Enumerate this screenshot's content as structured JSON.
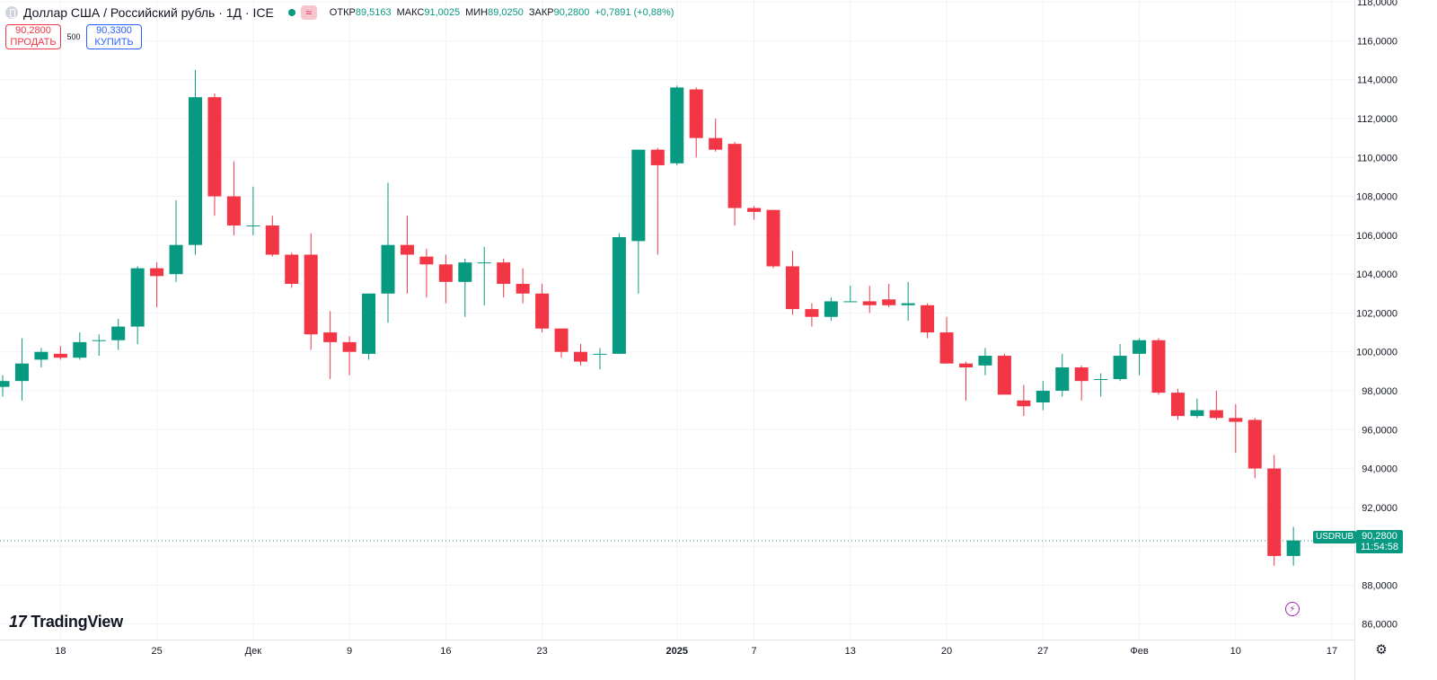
{
  "header": {
    "title": "Доллар США / Российский рубль · 1Д · ICE",
    "status_icon": "≈",
    "ohlc": [
      {
        "label": "ОТКР",
        "value": "89,5163"
      },
      {
        "label": "МАКС",
        "value": "91,0025"
      },
      {
        "label": "МИН",
        "value": "89,0250"
      },
      {
        "label": "ЗАКР",
        "value": "90,2800"
      },
      {
        "label": "",
        "value": "+0,7891 (+0,88%)"
      }
    ]
  },
  "trade": {
    "sell_price": "90,2800",
    "sell_label": "ПРОДАТЬ",
    "spread": "500",
    "buy_price": "90,3300",
    "buy_label": "КУПИТЬ"
  },
  "logo": {
    "text": "TradingView"
  },
  "price_tag": {
    "symbol": "USDRUB",
    "price": "90,2800",
    "countdown": "11:54:58"
  },
  "colors": {
    "up": "#089981",
    "down": "#f23645",
    "grid": "#f0f3fa"
  },
  "chart_data": {
    "type": "candlestick",
    "last_price": 90.28,
    "ylim": [
      85.2,
      118.1
    ],
    "y_ticks": [
      {
        "v": 86,
        "label": "86,0000"
      },
      {
        "v": 88,
        "label": "88,0000"
      },
      {
        "v": 90,
        "label": "90,0000"
      },
      {
        "v": 92,
        "label": "92,0000"
      },
      {
        "v": 94,
        "label": "94,0000"
      },
      {
        "v": 96,
        "label": "96,0000"
      },
      {
        "v": 98,
        "label": "98,0000"
      },
      {
        "v": 100,
        "label": "100,0000"
      },
      {
        "v": 102,
        "label": "102,0000"
      },
      {
        "v": 104,
        "label": "104,0000"
      },
      {
        "v": 106,
        "label": "106,0000"
      },
      {
        "v": 108,
        "label": "108,0000"
      },
      {
        "v": 110,
        "label": "110,0000"
      },
      {
        "v": 112,
        "label": "112,0000"
      },
      {
        "v": 114,
        "label": "114,0000"
      },
      {
        "v": 116,
        "label": "116,0000"
      },
      {
        "v": 118,
        "label": "118,0000"
      }
    ],
    "x_ticks": [
      {
        "i": 3,
        "label": "18",
        "bold": false
      },
      {
        "i": 8,
        "label": "25",
        "bold": false
      },
      {
        "i": 13,
        "label": "Дек",
        "bold": false
      },
      {
        "i": 18,
        "label": "9",
        "bold": false
      },
      {
        "i": 23,
        "label": "16",
        "bold": false
      },
      {
        "i": 28,
        "label": "23",
        "bold": false
      },
      {
        "i": 35,
        "label": "2025",
        "bold": true
      },
      {
        "i": 39,
        "label": "7",
        "bold": false
      },
      {
        "i": 44,
        "label": "13",
        "bold": false
      },
      {
        "i": 49,
        "label": "20",
        "bold": false
      },
      {
        "i": 54,
        "label": "27",
        "bold": false
      },
      {
        "i": 59,
        "label": "Фев",
        "bold": false
      },
      {
        "i": 64,
        "label": "10",
        "bold": false
      },
      {
        "i": 69,
        "label": "17",
        "bold": false
      }
    ],
    "candles": [
      {
        "o": 98.2,
        "h": 98.8,
        "l": 97.7,
        "c": 98.5
      },
      {
        "o": 98.5,
        "h": 100.7,
        "l": 97.5,
        "c": 99.4
      },
      {
        "o": 99.6,
        "h": 100.2,
        "l": 99.2,
        "c": 100.0
      },
      {
        "o": 99.9,
        "h": 100.3,
        "l": 99.6,
        "c": 99.7
      },
      {
        "o": 99.7,
        "h": 101.0,
        "l": 99.6,
        "c": 100.5
      },
      {
        "o": 100.6,
        "h": 100.9,
        "l": 99.8,
        "c": 100.6
      },
      {
        "o": 100.6,
        "h": 101.7,
        "l": 100.1,
        "c": 101.3
      },
      {
        "o": 101.3,
        "h": 104.4,
        "l": 100.4,
        "c": 104.3
      },
      {
        "o": 104.3,
        "h": 104.6,
        "l": 102.3,
        "c": 103.9
      },
      {
        "o": 104.0,
        "h": 107.8,
        "l": 103.6,
        "c": 105.5
      },
      {
        "o": 105.5,
        "h": 114.5,
        "l": 105.0,
        "c": 113.1
      },
      {
        "o": 113.1,
        "h": 113.3,
        "l": 107.0,
        "c": 108.0
      },
      {
        "o": 108.0,
        "h": 109.8,
        "l": 106.0,
        "c": 106.5
      },
      {
        "o": 106.5,
        "h": 108.5,
        "l": 106.0,
        "c": 106.5
      },
      {
        "o": 106.5,
        "h": 107.0,
        "l": 104.9,
        "c": 105.0
      },
      {
        "o": 105.0,
        "h": 105.1,
        "l": 103.3,
        "c": 103.5
      },
      {
        "o": 105.0,
        "h": 106.1,
        "l": 100.1,
        "c": 100.9
      },
      {
        "o": 101.0,
        "h": 102.1,
        "l": 98.6,
        "c": 100.5
      },
      {
        "o": 100.5,
        "h": 100.8,
        "l": 98.8,
        "c": 100.0
      },
      {
        "o": 99.9,
        "h": 103.0,
        "l": 99.6,
        "c": 103.0
      },
      {
        "o": 103.0,
        "h": 108.7,
        "l": 101.5,
        "c": 105.5
      },
      {
        "o": 105.5,
        "h": 107.0,
        "l": 103.0,
        "c": 105.0
      },
      {
        "o": 104.9,
        "h": 105.3,
        "l": 102.8,
        "c": 104.5
      },
      {
        "o": 104.5,
        "h": 105.0,
        "l": 102.5,
        "c": 103.6
      },
      {
        "o": 103.6,
        "h": 104.8,
        "l": 101.8,
        "c": 104.6
      },
      {
        "o": 104.6,
        "h": 105.4,
        "l": 102.4,
        "c": 104.6
      },
      {
        "o": 104.6,
        "h": 104.8,
        "l": 102.8,
        "c": 103.5
      },
      {
        "o": 103.5,
        "h": 104.3,
        "l": 102.5,
        "c": 103.0
      },
      {
        "o": 103.0,
        "h": 103.5,
        "l": 101.0,
        "c": 101.2
      },
      {
        "o": 101.2,
        "h": 101.2,
        "l": 99.7,
        "c": 100.0
      },
      {
        "o": 100.0,
        "h": 100.4,
        "l": 99.3,
        "c": 99.5
      },
      {
        "o": 99.9,
        "h": 100.2,
        "l": 99.1,
        "c": 99.9
      },
      {
        "o": 99.9,
        "h": 106.1,
        "l": 99.9,
        "c": 105.9
      },
      {
        "o": 105.7,
        "h": 110.4,
        "l": 103.0,
        "c": 110.4
      },
      {
        "o": 110.4,
        "h": 110.5,
        "l": 105.0,
        "c": 109.6
      },
      {
        "o": 109.7,
        "h": 113.7,
        "l": 109.6,
        "c": 113.6
      },
      {
        "o": 113.5,
        "h": 113.6,
        "l": 110.0,
        "c": 111.0
      },
      {
        "o": 111.0,
        "h": 112.0,
        "l": 110.3,
        "c": 110.4
      },
      {
        "o": 110.7,
        "h": 110.8,
        "l": 106.5,
        "c": 107.4
      },
      {
        "o": 107.4,
        "h": 107.5,
        "l": 106.8,
        "c": 107.2
      },
      {
        "o": 107.3,
        "h": 107.3,
        "l": 104.3,
        "c": 104.4
      },
      {
        "o": 104.4,
        "h": 105.2,
        "l": 101.9,
        "c": 102.2
      },
      {
        "o": 102.2,
        "h": 102.5,
        "l": 101.3,
        "c": 101.8
      },
      {
        "o": 101.8,
        "h": 102.8,
        "l": 101.6,
        "c": 102.6
      },
      {
        "o": 102.6,
        "h": 103.4,
        "l": 102.6,
        "c": 102.6
      },
      {
        "o": 102.6,
        "h": 103.4,
        "l": 102.0,
        "c": 102.4
      },
      {
        "o": 102.7,
        "h": 103.5,
        "l": 102.3,
        "c": 102.4
      },
      {
        "o": 102.4,
        "h": 103.6,
        "l": 101.6,
        "c": 102.5
      },
      {
        "o": 102.4,
        "h": 102.5,
        "l": 100.7,
        "c": 101.0
      },
      {
        "o": 101.0,
        "h": 101.8,
        "l": 99.4,
        "c": 99.4
      },
      {
        "o": 99.4,
        "h": 99.5,
        "l": 97.5,
        "c": 99.2
      },
      {
        "o": 99.3,
        "h": 100.2,
        "l": 98.8,
        "c": 99.8
      },
      {
        "o": 99.8,
        "h": 99.9,
        "l": 97.8,
        "c": 97.8
      },
      {
        "o": 97.5,
        "h": 98.3,
        "l": 96.7,
        "c": 97.2
      },
      {
        "o": 97.4,
        "h": 98.5,
        "l": 97.0,
        "c": 98.0
      },
      {
        "o": 98.0,
        "h": 99.9,
        "l": 97.7,
        "c": 99.2
      },
      {
        "o": 99.2,
        "h": 99.3,
        "l": 97.5,
        "c": 98.5
      },
      {
        "o": 98.6,
        "h": 98.9,
        "l": 97.7,
        "c": 98.6
      },
      {
        "o": 98.6,
        "h": 100.4,
        "l": 98.5,
        "c": 99.8
      },
      {
        "o": 99.9,
        "h": 100.7,
        "l": 98.8,
        "c": 100.6
      },
      {
        "o": 100.6,
        "h": 100.7,
        "l": 97.8,
        "c": 97.9
      },
      {
        "o": 97.9,
        "h": 98.1,
        "l": 96.5,
        "c": 96.7
      },
      {
        "o": 96.7,
        "h": 97.6,
        "l": 96.6,
        "c": 97.0
      },
      {
        "o": 97.0,
        "h": 98.0,
        "l": 96.5,
        "c": 96.6
      },
      {
        "o": 96.6,
        "h": 97.3,
        "l": 94.8,
        "c": 96.4
      },
      {
        "o": 96.5,
        "h": 96.6,
        "l": 93.5,
        "c": 94.0
      },
      {
        "o": 94.0,
        "h": 94.7,
        "l": 89.0,
        "c": 89.5
      },
      {
        "o": 89.5,
        "h": 91.0,
        "l": 89.0,
        "c": 90.3
      }
    ]
  }
}
